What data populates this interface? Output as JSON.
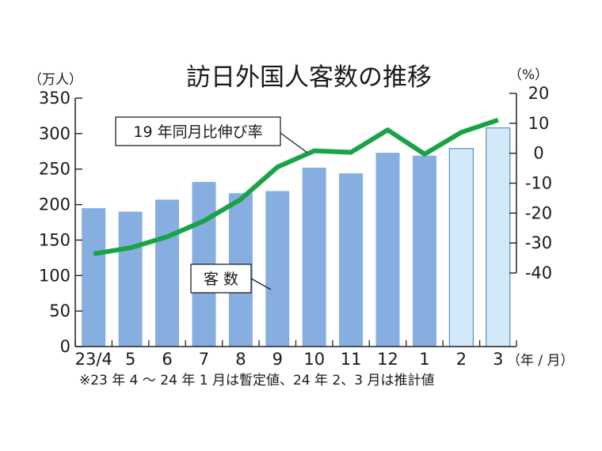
{
  "chart_data": {
    "type": "bar+line",
    "title": "訪日外国人客数の推移",
    "left_unit": "（万人）",
    "right_unit": "（%）",
    "x_unit": "（年 / 月）",
    "footnote": "※23 年 4 ～ 24 年 1 月は暫定値、24 年 2、3 月は推計値",
    "categories": [
      "23/4",
      "5",
      "6",
      "7",
      "8",
      "9",
      "10",
      "11",
      "12",
      "1",
      "2",
      "3"
    ],
    "bar_series": {
      "label": "客 数",
      "values": [
        195,
        190,
        207,
        232,
        216,
        219,
        252,
        244,
        273,
        269,
        279,
        308
      ],
      "status": [
        "provisional",
        "provisional",
        "provisional",
        "provisional",
        "provisional",
        "provisional",
        "provisional",
        "provisional",
        "provisional",
        "provisional",
        "estimate",
        "estimate"
      ]
    },
    "line_series": {
      "label": "19 年同月比伸び率",
      "values": [
        -33.6,
        -31.6,
        -27.9,
        -22.6,
        -15.4,
        -4.6,
        0.8,
        0.3,
        7.8,
        -0.3,
        7.0,
        11.1
      ]
    },
    "left_axis": {
      "min": 0,
      "max": 350,
      "ticks": [
        0,
        50,
        100,
        150,
        200,
        250,
        300,
        350
      ]
    },
    "right_axis": {
      "min": -40,
      "max": 20,
      "ticks": [
        20,
        10,
        0,
        -10,
        -20,
        -30,
        -40
      ]
    },
    "colors": {
      "bar": "#86aee0",
      "bar_estimate": "#d3e9f7",
      "bar_estimate_stroke": "#5a8fc8",
      "line": "#1aa346",
      "axis": "#222222"
    }
  }
}
